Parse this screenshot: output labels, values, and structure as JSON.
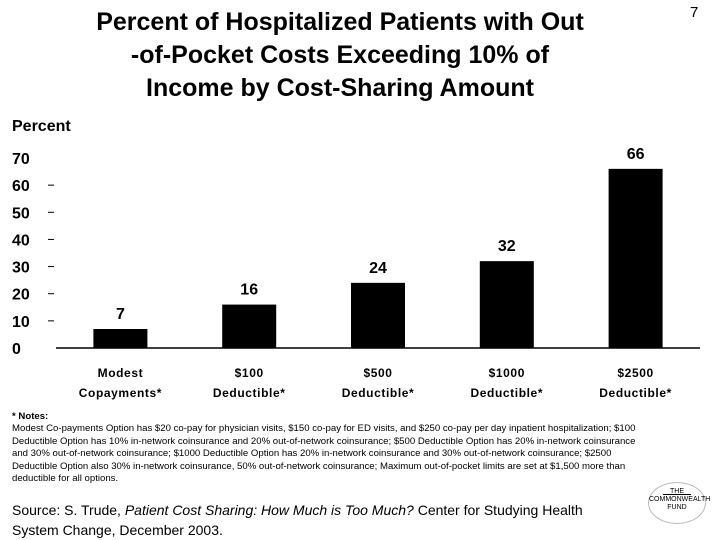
{
  "slide": {
    "number": "7",
    "title_lines": [
      "Percent of Hospitalized Patients with Out",
      "-of-Pocket Costs Exceeding 10% of",
      "Income by Cost-Sharing Amount"
    ]
  },
  "chart_data": {
    "type": "bar",
    "title": "Percent of Hospitalized Patients with Out-of-Pocket Costs Exceeding 10% of Income by Cost-Sharing Amount",
    "ylabel": "Percent",
    "xlabel": "",
    "ylim": [
      0,
      70
    ],
    "yticks": [
      0,
      10,
      20,
      30,
      40,
      50,
      60,
      70
    ],
    "categories": [
      [
        "Modest",
        "Copayments*"
      ],
      [
        "$100",
        "Deductible*"
      ],
      [
        "$500",
        "Deductible*"
      ],
      [
        "$1000",
        "Deductible*"
      ],
      [
        "$2500",
        "Deductible*"
      ]
    ],
    "values": [
      7,
      16,
      24,
      32,
      66
    ],
    "data_labels": [
      "7",
      "16",
      "24",
      "32",
      "66"
    ],
    "bar_color": "#000000",
    "grid": false,
    "legend": "none"
  },
  "notes": {
    "heading": "* Notes:",
    "text": "Modest Co-payments Option has $20 co-pay for physician visits, $150 co-pay for ED visits, and $250 co-pay per day inpatient hospitalization; $100 Deductible Option has 10% in-network coinsurance and 20% out-of-network coinsurance; $500 Deductible Option has 20% in-network coinsurance and 30% out-of-network coinsurance; $1000 Deductible Option has 20% in-network coinsurance and 30% out-of-network coinsurance; $2500 Deductible Option also 30% in-network coinsurance, 50% out-of-network coinsurance; Maximum out-of-pocket limits are set at $1,500 more than deductible for all options."
  },
  "source": {
    "prefix": "Source: S. Trude, ",
    "work_title": "Patient Cost Sharing: How Much is Too Much?",
    "suffix": " Center for Studying Health System Change, December 2003."
  },
  "logo": {
    "lines": [
      "THE",
      "COMMONWEALTH",
      "FUND"
    ]
  }
}
